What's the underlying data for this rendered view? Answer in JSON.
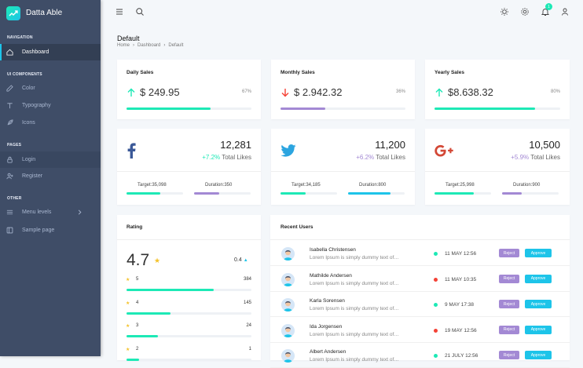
{
  "app": {
    "name": "Datta Able"
  },
  "sidebar": {
    "captions": [
      "NAVIGATION",
      "UI COMPONENTS",
      "PAGES",
      "OTHER"
    ],
    "items": [
      {
        "label": "Dashboard",
        "icon": "home-icon"
      },
      {
        "label": "Color",
        "icon": "edit-icon"
      },
      {
        "label": "Typography",
        "icon": "type-icon"
      },
      {
        "label": "Icons",
        "icon": "feather-icon"
      },
      {
        "label": "Login",
        "icon": "lock-icon"
      },
      {
        "label": "Register",
        "icon": "user-plus-icon"
      },
      {
        "label": "Menu levels",
        "icon": "menu-icon"
      },
      {
        "label": "Sample page",
        "icon": "sidebar-icon"
      }
    ]
  },
  "topbar": {
    "notification_count": "1"
  },
  "page": {
    "title": "Default",
    "breadcrumb": [
      "Home",
      "Dashboard",
      "Default"
    ]
  },
  "sales": [
    {
      "title": "Daily Sales",
      "amount": "$ 249.95",
      "percent": "67%",
      "trend": "up",
      "level": 0.67,
      "color": "#1de9b6"
    },
    {
      "title": "Monthly Sales",
      "amount": "$ 2.942.32",
      "percent": "36%",
      "trend": "down",
      "level": 0.36,
      "color": "#a389d4"
    },
    {
      "title": "Yearly Sales",
      "amount": "$8.638.32",
      "percent": "80%",
      "trend": "up",
      "level": 0.8,
      "color": "#1de9b6"
    }
  ],
  "social": [
    {
      "network": "facebook-icon",
      "likes": "12,281",
      "change": "+7.2%",
      "change_color": "#1de9b6",
      "total_label": "Total Likes",
      "target": "Target:35,098",
      "duration": "Duration:350",
      "target_level": 0.6,
      "duration_level": 0.45,
      "target_color": "#1de9b6",
      "duration_color": "#a389d4"
    },
    {
      "network": "twitter-icon",
      "likes": "11,200",
      "change": "+6.2%",
      "change_color": "#a389d4",
      "total_label": "Total Likes",
      "target": "Target:34,185",
      "duration": "Duration:800",
      "target_level": 0.45,
      "duration_level": 0.75,
      "target_color": "#1de9b6",
      "duration_color": "#1dc4e9"
    },
    {
      "network": "google-plus-icon",
      "likes": "10,500",
      "change": "+5.9%",
      "change_color": "#a389d4",
      "total_label": "Total Likes",
      "target": "Target:25,998",
      "duration": "Duration:900",
      "target_level": 0.7,
      "duration_level": 0.35,
      "target_color": "#1de9b6",
      "duration_color": "#a389d4"
    }
  ],
  "rating": {
    "title": "Rating",
    "score": "4.7",
    "change": "0.4",
    "rows": [
      {
        "star": "5",
        "count": "384",
        "level": 0.7
      },
      {
        "star": "4",
        "count": "145",
        "level": 0.35
      },
      {
        "star": "3",
        "count": "24",
        "level": 0.25
      },
      {
        "star": "2",
        "count": "1",
        "level": 0.1
      }
    ]
  },
  "recent_users": {
    "title": "Recent Users",
    "reject_label": "Reject",
    "approve_label": "Approve",
    "rows": [
      {
        "name": "Isabella Christensen",
        "desc": "Lorem Ipsum is simply dummy text of…",
        "date": "11 MAY 12:56",
        "status": "green"
      },
      {
        "name": "Mathilde Andersen",
        "desc": "Lorem Ipsum is simply dummy text of…",
        "date": "11 MAY 10:35",
        "status": "red"
      },
      {
        "name": "Karla Sorensen",
        "desc": "Lorem Ipsum is simply dummy text of…",
        "date": "9 MAY 17:38",
        "status": "green"
      },
      {
        "name": "Ida Jorgensen",
        "desc": "Lorem Ipsum is simply dummy text of…",
        "date": "19 MAY 12:56",
        "status": "red"
      },
      {
        "name": "Albert Andersen",
        "desc": "Lorem Ipsum is simply dummy text of…",
        "date": "21 JULY 12:56",
        "status": "green"
      }
    ]
  },
  "colors": {
    "green": "#1de9b6",
    "red": "#f44236",
    "purple": "#a389d4",
    "blue": "#1dc4e9",
    "sidebar": "#3f4d67"
  }
}
